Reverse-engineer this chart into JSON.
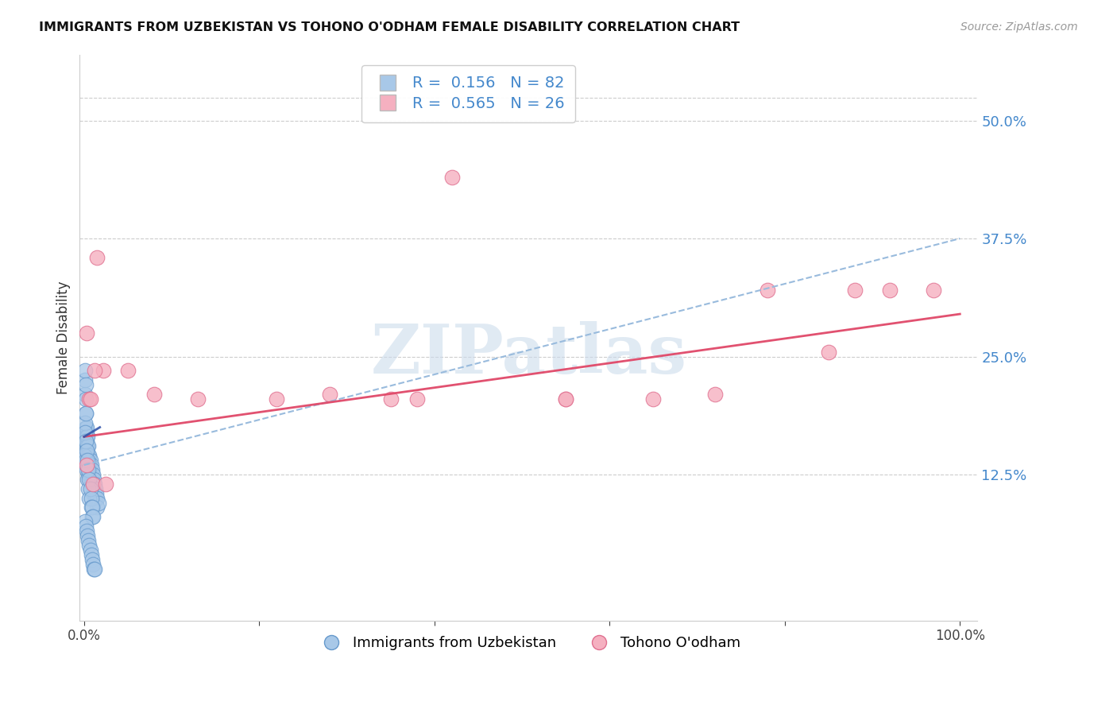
{
  "title": "IMMIGRANTS FROM UZBEKISTAN VS TOHONO O'ODHAM FEMALE DISABILITY CORRELATION CHART",
  "source": "Source: ZipAtlas.com",
  "ylabel": "Female Disability",
  "y_ticks": [
    0.125,
    0.25,
    0.375,
    0.5
  ],
  "y_tick_labels": [
    "12.5%",
    "25.0%",
    "37.5%",
    "50.0%"
  ],
  "xlim": [
    -0.005,
    1.02
  ],
  "ylim": [
    -0.03,
    0.57
  ],
  "blue_R": 0.156,
  "blue_N": 82,
  "pink_R": 0.565,
  "pink_N": 26,
  "blue_color": "#a8c8e8",
  "blue_edge": "#6699cc",
  "pink_color": "#f5b0c0",
  "pink_edge": "#e07090",
  "blue_solid_line_color": "#3355aa",
  "pink_line_color": "#e04868",
  "dashed_line_color": "#99bbdd",
  "watermark_color": "#ccdcec",
  "legend_label_blue": "Immigrants from Uzbekistan",
  "legend_label_pink": "Tohono O'odham",
  "legend_text_color": "#4488cc",
  "blue_scatter_x": [
    0.0005,
    0.001,
    0.001,
    0.001,
    0.0015,
    0.0015,
    0.002,
    0.002,
    0.002,
    0.002,
    0.002,
    0.0025,
    0.0025,
    0.003,
    0.003,
    0.003,
    0.003,
    0.003,
    0.004,
    0.004,
    0.004,
    0.004,
    0.005,
    0.005,
    0.005,
    0.005,
    0.006,
    0.006,
    0.006,
    0.007,
    0.007,
    0.007,
    0.008,
    0.008,
    0.008,
    0.009,
    0.009,
    0.01,
    0.01,
    0.01,
    0.011,
    0.011,
    0.012,
    0.012,
    0.013,
    0.013,
    0.014,
    0.015,
    0.015,
    0.016,
    0.0005,
    0.001,
    0.001,
    0.0015,
    0.002,
    0.002,
    0.003,
    0.003,
    0.004,
    0.004,
    0.005,
    0.005,
    0.006,
    0.006,
    0.007,
    0.008,
    0.008,
    0.009,
    0.009,
    0.01,
    0.001,
    0.002,
    0.003,
    0.004,
    0.005,
    0.006,
    0.007,
    0.008,
    0.009,
    0.01,
    0.011,
    0.012
  ],
  "blue_scatter_y": [
    0.155,
    0.21,
    0.225,
    0.235,
    0.205,
    0.22,
    0.19,
    0.175,
    0.165,
    0.155,
    0.145,
    0.16,
    0.17,
    0.175,
    0.165,
    0.155,
    0.145,
    0.135,
    0.165,
    0.155,
    0.145,
    0.135,
    0.155,
    0.145,
    0.135,
    0.125,
    0.145,
    0.135,
    0.125,
    0.14,
    0.13,
    0.12,
    0.135,
    0.125,
    0.115,
    0.13,
    0.12,
    0.125,
    0.115,
    0.105,
    0.12,
    0.11,
    0.115,
    0.105,
    0.11,
    0.1,
    0.105,
    0.1,
    0.09,
    0.095,
    0.145,
    0.18,
    0.17,
    0.19,
    0.16,
    0.14,
    0.15,
    0.13,
    0.14,
    0.12,
    0.13,
    0.11,
    0.12,
    0.1,
    0.11,
    0.1,
    0.09,
    0.09,
    0.08,
    0.08,
    0.075,
    0.07,
    0.065,
    0.06,
    0.055,
    0.05,
    0.045,
    0.04,
    0.035,
    0.03,
    0.025,
    0.025
  ],
  "pink_scatter_x": [
    0.003,
    0.006,
    0.01,
    0.015,
    0.022,
    0.05,
    0.13,
    0.22,
    0.28,
    0.35,
    0.42,
    0.55,
    0.65,
    0.72,
    0.78,
    0.85,
    0.92,
    0.97,
    0.003,
    0.007,
    0.012,
    0.025,
    0.08,
    0.38,
    0.55,
    0.88
  ],
  "pink_scatter_y": [
    0.275,
    0.205,
    0.115,
    0.355,
    0.235,
    0.235,
    0.205,
    0.205,
    0.21,
    0.205,
    0.44,
    0.205,
    0.205,
    0.21,
    0.32,
    0.255,
    0.32,
    0.32,
    0.135,
    0.205,
    0.235,
    0.115,
    0.21,
    0.205,
    0.205,
    0.32
  ],
  "dashed_line_x": [
    0.0,
    1.0
  ],
  "dashed_line_y": [
    0.135,
    0.375
  ],
  "pink_line_x": [
    0.0,
    1.0
  ],
  "pink_line_y": [
    0.165,
    0.295
  ],
  "blue_solid_line_x": [
    0.0,
    0.018
  ],
  "blue_solid_line_y": [
    0.165,
    0.175
  ]
}
